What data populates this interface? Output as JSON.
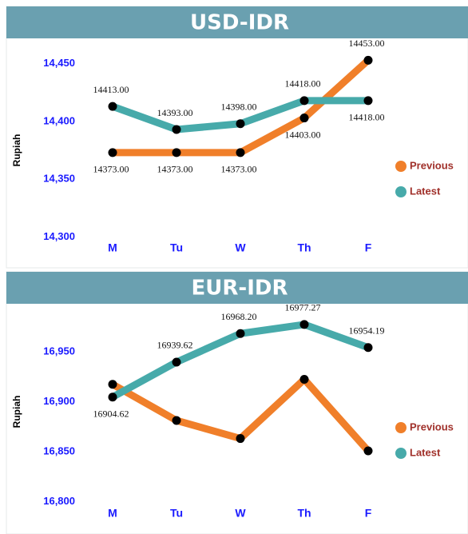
{
  "chart_data": [
    {
      "type": "line",
      "title": "USD-IDR",
      "y_label": "Rupiah",
      "categories": [
        "M",
        "Tu",
        "W",
        "Th",
        "F"
      ],
      "series": [
        {
          "name": "Previous",
          "color": "#f07f2a",
          "values": [
            14373,
            14373,
            14373,
            14403,
            14453
          ],
          "value_labels": [
            "14373.00",
            "14373.00",
            "14373.00",
            "14403.00",
            "14453.00"
          ]
        },
        {
          "name": "Latest",
          "color": "#47aaaa",
          "values": [
            14413,
            14393,
            14398,
            14418,
            14418
          ],
          "value_labels": [
            "14413.00",
            "14393.00",
            "14398.00",
            "14418.00",
            "14418.00"
          ]
        }
      ],
      "ylim": [
        14285,
        14465
      ],
      "yticks": [
        {
          "value": 14300,
          "label": "14,300"
        },
        {
          "value": 14350,
          "label": "14,350"
        },
        {
          "value": 14400,
          "label": "14,400"
        },
        {
          "value": 14450,
          "label": "14,450"
        }
      ],
      "legend": "right"
    },
    {
      "type": "line",
      "title": "EUR-IDR",
      "y_label": "Rupiah",
      "categories": [
        "M",
        "Tu",
        "W",
        "Th",
        "F"
      ],
      "series": [
        {
          "name": "Previous",
          "color": "#f07f2a",
          "values": [
            16917.41,
            16881.21,
            16863.16,
            16922.39,
            16850.78
          ]
        },
        {
          "name": "Latest",
          "color": "#47aaaa",
          "values": [
            16904.62,
            16939.62,
            16968.2,
            16977.27,
            16954.19
          ],
          "value_labels": [
            "16904.62",
            "16939.62",
            "16968.20",
            "16977.27",
            "16954.19"
          ]
        }
      ],
      "ylim": [
        16790,
        16990
      ],
      "yticks": [
        {
          "value": 16800,
          "label": "16,800"
        },
        {
          "value": 16850,
          "label": "16,850"
        },
        {
          "value": 16900,
          "label": "16,900"
        },
        {
          "value": 16950,
          "label": "16,950"
        }
      ],
      "legend": "right"
    }
  ]
}
